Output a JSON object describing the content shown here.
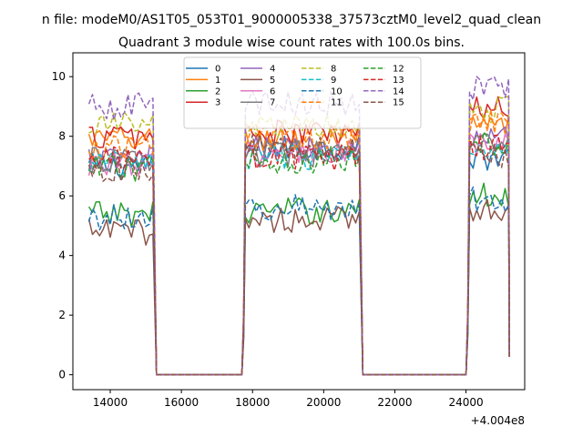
{
  "chart_data": {
    "type": "line",
    "title": "Quadrant 3 module wise count rates with 100.0s bins.",
    "suptitle": "n file: modeM0/AS1T05_053T01_9000005338_37573cztM0_level2_quad_clean",
    "xlabel": "",
    "ylabel": "",
    "x_offset_label": "+4.004e8",
    "x_axis_relative_to": 400400000,
    "xlim": [
      12950,
      25650
    ],
    "ylim": [
      -0.5,
      10.8
    ],
    "xticks": [
      14000,
      16000,
      18000,
      20000,
      22000,
      24000
    ],
    "xtick_labels": [
      "14000",
      "16000",
      "18000",
      "20000",
      "22000",
      "24000"
    ],
    "yticks": [
      0,
      2,
      4,
      6,
      8,
      10
    ],
    "ytick_labels": [
      "0",
      "2",
      "4",
      "6",
      "8",
      "10"
    ],
    "grid": false,
    "legend_position": "top-center",
    "legend_columns": 4,
    "segments": [
      {
        "start": 13400,
        "end": 15200,
        "drop_to_zero_at": 15300
      },
      {
        "start": 17800,
        "end": 21000,
        "drop_to_zero_at": 21100
      },
      {
        "start": 24100,
        "end": 25200,
        "drop_to_zero_at": null
      }
    ],
    "series": [
      {
        "name": "0",
        "color": "#1f77b4",
        "dash": "solid",
        "levels": [
          7.0,
          7.6,
          7.3
        ]
      },
      {
        "name": "1",
        "color": "#ff7f0e",
        "dash": "solid",
        "levels": [
          7.9,
          7.9,
          8.3
        ]
      },
      {
        "name": "2",
        "color": "#2ca02c",
        "dash": "solid",
        "levels": [
          5.4,
          5.5,
          6.0
        ]
      },
      {
        "name": "3",
        "color": "#d62728",
        "dash": "solid",
        "levels": [
          8.0,
          8.1,
          8.9
        ]
      },
      {
        "name": "4",
        "color": "#9467bd",
        "dash": "solid",
        "levels": [
          7.2,
          7.6,
          8.0
        ]
      },
      {
        "name": "5",
        "color": "#8c564b",
        "dash": "solid",
        "levels": [
          4.8,
          5.2,
          5.6
        ]
      },
      {
        "name": "6",
        "color": "#e377c2",
        "dash": "solid",
        "levels": [
          7.1,
          7.4,
          7.7
        ]
      },
      {
        "name": "7",
        "color": "#7f7f7f",
        "dash": "solid",
        "levels": [
          7.2,
          7.4,
          7.7
        ]
      },
      {
        "name": "8",
        "color": "#bcbd22",
        "dash": "dashed",
        "levels": [
          8.4,
          8.3,
          8.9
        ]
      },
      {
        "name": "9",
        "color": "#17becf",
        "dash": "dashed",
        "levels": [
          7.1,
          7.3,
          7.7
        ]
      },
      {
        "name": "10",
        "color": "#1f77b4",
        "dash": "dashed",
        "levels": [
          5.3,
          5.6,
          5.9
        ]
      },
      {
        "name": "11",
        "color": "#ff7f0e",
        "dash": "dashed",
        "levels": [
          7.6,
          8.0,
          8.5
        ]
      },
      {
        "name": "12",
        "color": "#2ca02c",
        "dash": "dashed",
        "levels": [
          6.9,
          7.2,
          7.8
        ]
      },
      {
        "name": "13",
        "color": "#d62728",
        "dash": "dashed",
        "levels": [
          7.2,
          7.3,
          7.6
        ]
      },
      {
        "name": "14",
        "color": "#9467bd",
        "dash": "dashed",
        "levels": [
          9.0,
          9.1,
          9.6
        ]
      },
      {
        "name": "15",
        "color": "#8c564b",
        "dash": "dashed",
        "levels": [
          6.9,
          7.6,
          7.4
        ]
      }
    ]
  }
}
